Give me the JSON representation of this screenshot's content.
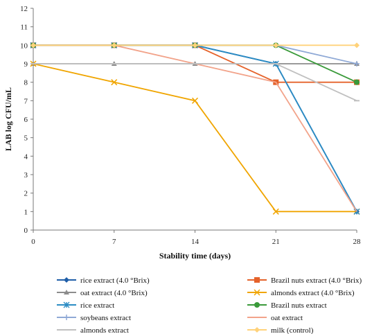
{
  "chart_data": {
    "type": "line",
    "title": "",
    "xlabel": "Stability time (days)",
    "ylabel": "LAB log CFU/mL",
    "x": [
      0,
      7,
      14,
      21,
      28
    ],
    "ylim": [
      0,
      12
    ],
    "yticks": [
      0,
      1,
      2,
      3,
      4,
      5,
      6,
      7,
      8,
      9,
      10,
      11,
      12
    ],
    "grid": false,
    "legend_position": "bottom",
    "series": [
      {
        "name": "rice extract (4.0 °Brix)",
        "values": [
          10,
          10,
          10,
          9,
          1
        ],
        "color": "#1f5ea8",
        "marker": "diamond"
      },
      {
        "name": "Brazil nuts extract  (4.0 °Brix)",
        "values": [
          10,
          10,
          10,
          8,
          8
        ],
        "color": "#e5622a",
        "marker": "square"
      },
      {
        "name": "oat extract (4.0 °Brix)",
        "values": [
          9,
          9,
          9,
          9,
          9
        ],
        "color": "#8c8c8c",
        "marker": "triangle"
      },
      {
        "name": "almonds extract  (4.0 °Brix)",
        "values": [
          9,
          8,
          7,
          1,
          1
        ],
        "color": "#f0a500",
        "marker": "x"
      },
      {
        "name": "rice extract",
        "values": [
          10,
          10,
          10,
          9,
          1
        ],
        "color": "#2b8cc4",
        "marker": "star"
      },
      {
        "name": "Brazil nuts extract",
        "values": [
          10,
          10,
          10,
          10,
          8
        ],
        "color": "#3a9a3a",
        "marker": "circle"
      },
      {
        "name": "soybeans extract",
        "values": [
          10,
          10,
          10,
          10,
          9
        ],
        "color": "#8fa9d6",
        "marker": "plus"
      },
      {
        "name": "oat extract",
        "values": [
          10,
          10,
          9,
          8,
          1
        ],
        "color": "#f2a38a",
        "marker": "none"
      },
      {
        "name": "almonds extract",
        "values": [
          9,
          9,
          9,
          9,
          7
        ],
        "color": "#c0c0c0",
        "marker": "dash"
      },
      {
        "name": "milk (control)",
        "values": [
          10,
          10,
          10,
          10,
          10
        ],
        "color": "#ffd27a",
        "marker": "diamond"
      }
    ]
  }
}
